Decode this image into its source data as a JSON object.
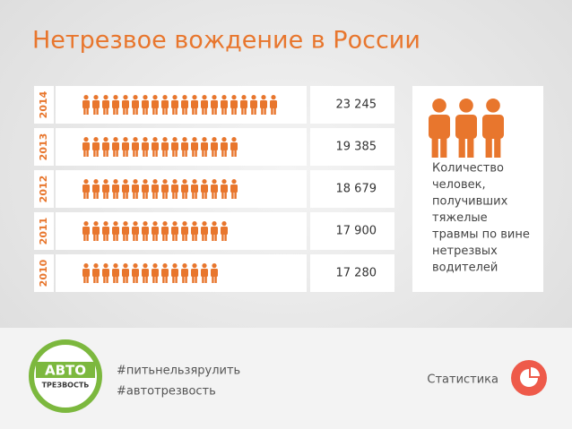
{
  "title": "Нетрезвое вождение в России",
  "chart_data": {
    "type": "pictogram",
    "categories": [
      "2014",
      "2013",
      "2012",
      "2011",
      "2010"
    ],
    "values": [
      23245,
      19385,
      18679,
      17900,
      17280
    ],
    "value_labels": [
      "23 245",
      "19 385",
      "18 679",
      "17 900",
      "17 280"
    ],
    "color": "#e8762d"
  },
  "note_lines": [
    "Количество",
    "человек,",
    "получивших",
    "тяжелые",
    "травмы по вине",
    "нетрезвых",
    "водителей"
  ],
  "footer": {
    "logo": [
      "АВТО",
      "ТРЕЗВОСТЬ"
    ],
    "hashtags": [
      "#питьнельзярулить",
      "#автотрезвость"
    ],
    "section": "Статистика"
  }
}
